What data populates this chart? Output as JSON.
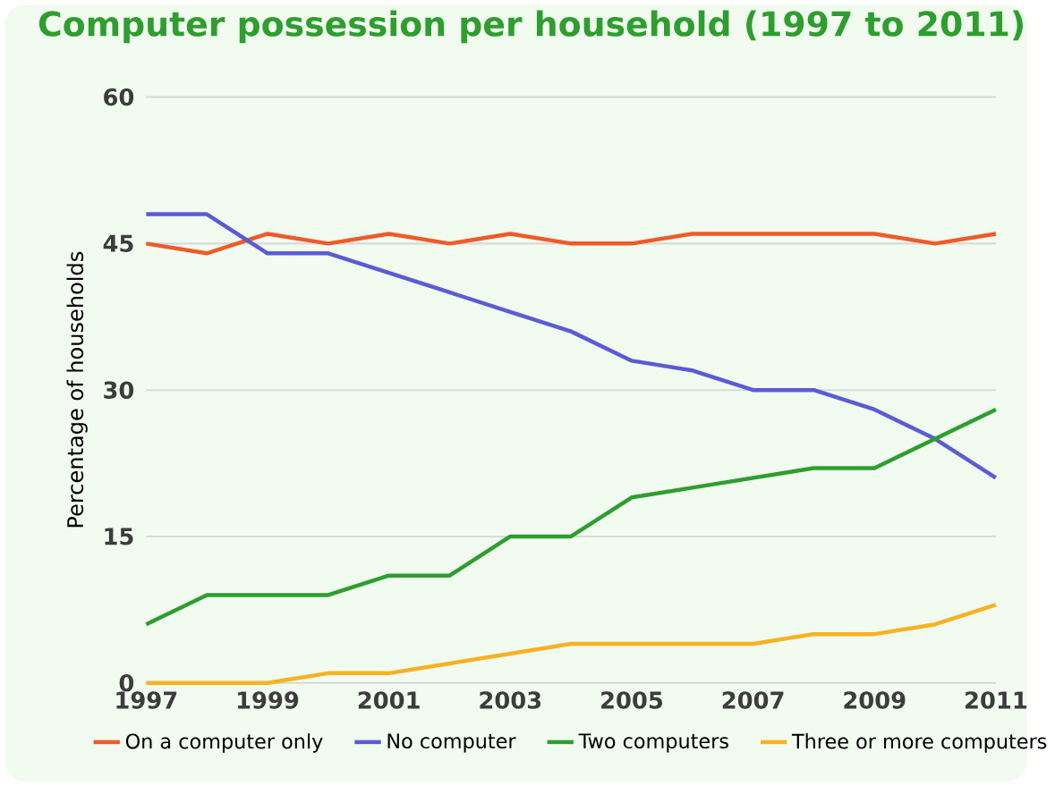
{
  "chart_data": {
    "type": "line",
    "title": "Computer possession per household (1997 to 2011)",
    "ylabel": "Percentage of households",
    "x": [
      1997,
      1998,
      1999,
      2000,
      2001,
      2002,
      2003,
      2004,
      2005,
      2006,
      2007,
      2008,
      2009,
      2010,
      2011
    ],
    "series": [
      {
        "name": "On a computer only",
        "color": "#f05a28",
        "values": [
          45,
          44,
          46,
          45,
          46,
          45,
          46,
          45,
          45,
          46,
          46,
          46,
          46,
          45,
          46
        ]
      },
      {
        "name": "No computer",
        "color": "#5b5bd6",
        "values": [
          48,
          48,
          44,
          44,
          42,
          40,
          38,
          36,
          33,
          32,
          30,
          30,
          28,
          25,
          21
        ]
      },
      {
        "name": "Two computers",
        "color": "#2e9e2e",
        "values": [
          6,
          9,
          9,
          9,
          11,
          11,
          15,
          15,
          19,
          20,
          21,
          22,
          22,
          25,
          28
        ]
      },
      {
        "name": "Three or more computers",
        "color": "#f9b122",
        "values": [
          0,
          0,
          0,
          1,
          1,
          2,
          3,
          4,
          4,
          4,
          4,
          5,
          5,
          6,
          8
        ]
      }
    ],
    "xlim": [
      1997,
      2011
    ],
    "ylim": [
      0,
      60
    ],
    "xticks": [
      1997,
      1999,
      2001,
      2003,
      2005,
      2007,
      2009,
      2011
    ],
    "yticks": [
      0,
      15,
      30,
      45,
      60
    ],
    "grid": "y",
    "legend": "bottom",
    "marker": "none",
    "line_style": "solid"
  }
}
